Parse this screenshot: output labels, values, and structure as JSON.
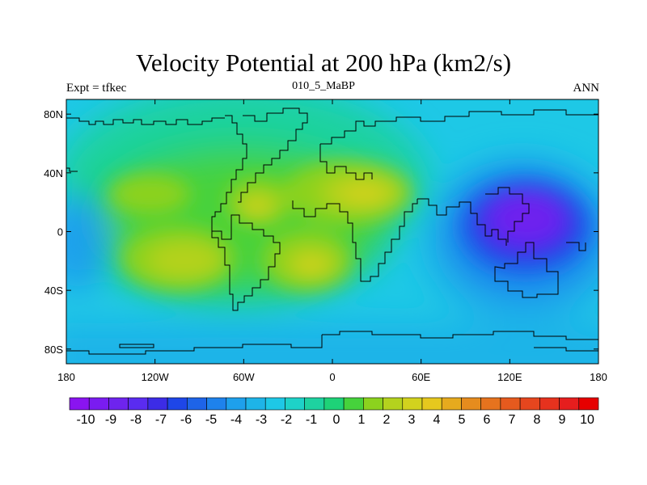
{
  "title": "Velocity Potential at 200 hPa (km2/s)",
  "left_string": "Expt = tfkec",
  "center_string": "010_5_MaBP",
  "right_string": "ANN",
  "x_ticks": [
    {
      "value": -180,
      "label": "180"
    },
    {
      "value": -120,
      "label": "120W"
    },
    {
      "value": -60,
      "label": "60W"
    },
    {
      "value": 0,
      "label": "0"
    },
    {
      "value": 60,
      "label": "60E"
    },
    {
      "value": 120,
      "label": "120E"
    },
    {
      "value": 180,
      "label": "180"
    }
  ],
  "y_ticks": [
    {
      "value": 80,
      "label": "80N"
    },
    {
      "value": 40,
      "label": "40N"
    },
    {
      "value": 0,
      "label": "0"
    },
    {
      "value": -40,
      "label": "40S"
    },
    {
      "value": -80,
      "label": "80S"
    }
  ],
  "colorbar": {
    "labels": [
      "-10",
      "-9",
      "-8",
      "-7",
      "-6",
      "-5",
      "-4",
      "-3",
      "-2",
      "-1",
      "0",
      "1",
      "2",
      "3",
      "4",
      "5",
      "6",
      "7",
      "8",
      "9",
      "10"
    ],
    "colors": [
      "#8a14f0",
      "#7a1cf0",
      "#6e24ee",
      "#5a2cf0",
      "#3c2ce6",
      "#1e46e8",
      "#1e64e8",
      "#1e82ec",
      "#1ea0ec",
      "#1eb4e8",
      "#1ec8e6",
      "#1ed2c8",
      "#1ed2a0",
      "#1ed278",
      "#46d23c",
      "#8cd21e",
      "#b4d21e",
      "#d2d21e",
      "#e6c81e",
      "#e6aa1e",
      "#e68c1e",
      "#e6731e",
      "#e65a1e",
      "#e6461e",
      "#e6321e",
      "#e61e1e",
      "#e60000"
    ]
  },
  "chart_data": {
    "type": "heatmap",
    "variable": "Velocity Potential at 200 hPa",
    "units": "km2/s",
    "x_range": [
      -180,
      180
    ],
    "y_range": [
      -90,
      90
    ],
    "contour_levels": [
      -10,
      -9,
      -8,
      -7,
      -6,
      -5,
      -4,
      -3,
      -2,
      -1,
      0,
      1,
      2,
      3,
      4,
      5,
      6,
      7,
      8,
      9,
      10
    ],
    "features": [
      {
        "kind": "minimum",
        "lon": 137,
        "lat": 5,
        "value": -9.5
      },
      {
        "kind": "maximum",
        "lon": 23,
        "lat": 25,
        "value": 4.5
      },
      {
        "kind": "maximum",
        "lon": -62,
        "lat": 15,
        "value": 4.5
      },
      {
        "kind": "maximum",
        "lon": -22,
        "lat": -23,
        "value": 4.5
      },
      {
        "kind": "maximum",
        "lon": -100,
        "lat": -20,
        "value": 4
      }
    ]
  }
}
